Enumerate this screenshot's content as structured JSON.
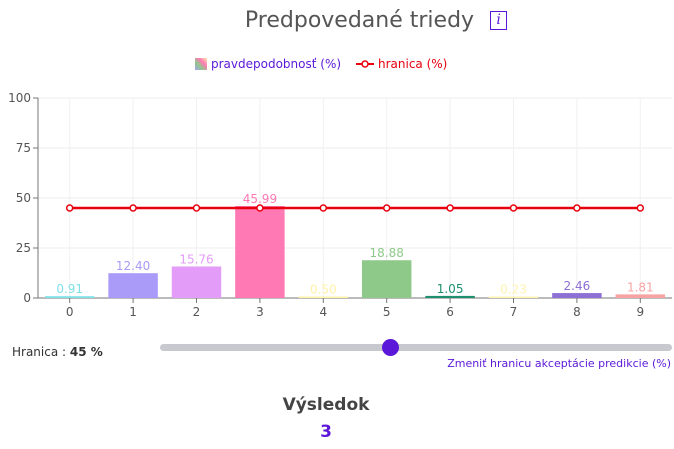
{
  "header": {
    "title": "Predpovedané triedy",
    "info_icon": "info-icon"
  },
  "legend": {
    "probability_label": "pravdepodobnosť (%)",
    "threshold_label": "hranica (%)"
  },
  "threshold_control": {
    "label": "Hranica :",
    "value_text": "45 %",
    "value": 45,
    "hint": "Zmeniť hranicu akceptácie predikcie (%)"
  },
  "result": {
    "label": "Výsledok",
    "value": "3"
  },
  "colors": {
    "accent": "#5b18d8",
    "threshold": "#e8000d"
  },
  "chart_data": {
    "type": "bar",
    "categories": [
      "0",
      "1",
      "2",
      "3",
      "4",
      "5",
      "6",
      "7",
      "8",
      "9"
    ],
    "values": [
      0.91,
      12.4,
      15.76,
      45.99,
      0.5,
      18.88,
      1.05,
      0.23,
      2.46,
      1.81
    ],
    "value_labels": [
      "0.91",
      "12.40",
      "15.76",
      "45.99",
      "0.50",
      "18.88",
      "1.05",
      "0.23",
      "2.46",
      "1.81"
    ],
    "bar_colors": [
      "#7fe1e8",
      "#a99bf7",
      "#e39cf7",
      "#ff7ab5",
      "#fff1a6",
      "#8fc98a",
      "#1f8f6f",
      "#fff3b0",
      "#8e6fd6",
      "#f7a3a3"
    ],
    "threshold_line": {
      "name": "hranica (%)",
      "values": [
        45,
        45,
        45,
        45,
        45,
        45,
        45,
        45,
        45,
        45
      ]
    },
    "yticks": [
      "0",
      "25",
      "50",
      "75",
      "100"
    ],
    "ylim": [
      0,
      100
    ],
    "grid": true,
    "legend_position": "top-center"
  }
}
